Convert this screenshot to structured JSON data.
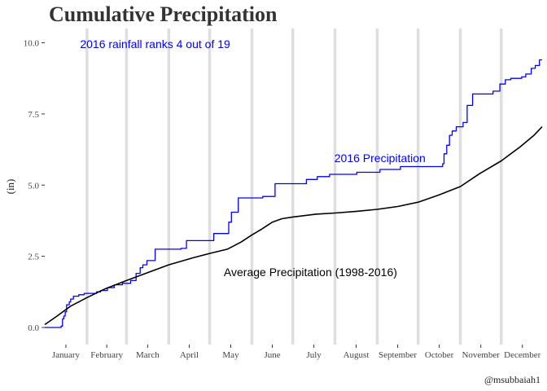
{
  "chart_data": {
    "type": "line",
    "title": "Cumulative Precipitation",
    "xlabel": "",
    "ylabel": "(in)",
    "caption": "@msubbaiah1",
    "ylim": [
      -0.6,
      10.5
    ],
    "y_ticks": [
      "0.0",
      "2.5",
      "5.0",
      "7.5",
      "10.0"
    ],
    "x_tick_labels": [
      "January",
      "February",
      "March",
      "April",
      "May",
      "June",
      "July",
      "August",
      "September",
      "October",
      "November",
      "December"
    ],
    "month_boundaries_day": [
      32,
      61,
      92,
      122,
      153,
      183,
      214,
      245,
      275,
      306,
      336
    ],
    "grid": false,
    "annotations": [
      {
        "text": "2016 rainfall ranks 4 out of 19",
        "color": "#0000ff",
        "x_day": 82,
        "y": 9.95
      },
      {
        "text": "2016 Precipitation",
        "color": "#0000ff",
        "x_day": 247,
        "y": 5.95
      },
      {
        "text": "Average Precipitation (1998-2016)",
        "color": "#000000",
        "x_day": 196,
        "y": 1.95
      }
    ],
    "series": [
      {
        "name": "2016 Precipitation",
        "color": "#0000ff",
        "style": "step",
        "points": [
          [
            1,
            0.0
          ],
          [
            13,
            0.05
          ],
          [
            14,
            0.3
          ],
          [
            15,
            0.4
          ],
          [
            16,
            0.55
          ],
          [
            17,
            0.8
          ],
          [
            19,
            0.9
          ],
          [
            20,
            1.0
          ],
          [
            22,
            1.1
          ],
          [
            26,
            1.15
          ],
          [
            30,
            1.2
          ],
          [
            39,
            1.25
          ],
          [
            42,
            1.3
          ],
          [
            47,
            1.4
          ],
          [
            52,
            1.5
          ],
          [
            58,
            1.55
          ],
          [
            64,
            1.65
          ],
          [
            68,
            1.9
          ],
          [
            71,
            2.1
          ],
          [
            73,
            2.2
          ],
          [
            76,
            2.35
          ],
          [
            82,
            2.75
          ],
          [
            101,
            2.78
          ],
          [
            105,
            3.05
          ],
          [
            125,
            3.3
          ],
          [
            136,
            3.7
          ],
          [
            138,
            4.05
          ],
          [
            143,
            4.55
          ],
          [
            161,
            4.6
          ],
          [
            170,
            5.05
          ],
          [
            193,
            5.2
          ],
          [
            201,
            5.3
          ],
          [
            210,
            5.38
          ],
          [
            230,
            5.45
          ],
          [
            247,
            5.55
          ],
          [
            262,
            5.65
          ],
          [
            293,
            5.75
          ],
          [
            294,
            6.1
          ],
          [
            296,
            6.4
          ],
          [
            298,
            6.75
          ],
          [
            300,
            6.9
          ],
          [
            303,
            7.05
          ],
          [
            308,
            7.2
          ],
          [
            311,
            7.8
          ],
          [
            315,
            8.2
          ],
          [
            330,
            8.3
          ],
          [
            335,
            8.55
          ],
          [
            339,
            8.7
          ],
          [
            343,
            8.75
          ],
          [
            351,
            8.8
          ],
          [
            354,
            8.9
          ],
          [
            358,
            9.1
          ],
          [
            361,
            9.2
          ],
          [
            364,
            9.4
          ],
          [
            366,
            9.4
          ]
        ]
      },
      {
        "name": "Average Precipitation (1998-2016)",
        "color": "#000000",
        "style": "line",
        "points": [
          [
            1,
            0.1
          ],
          [
            10,
            0.4
          ],
          [
            20,
            0.75
          ],
          [
            32,
            1.05
          ],
          [
            45,
            1.35
          ],
          [
            61,
            1.65
          ],
          [
            75,
            1.9
          ],
          [
            92,
            2.2
          ],
          [
            110,
            2.45
          ],
          [
            122,
            2.6
          ],
          [
            135,
            2.75
          ],
          [
            145,
            3.0
          ],
          [
            153,
            3.25
          ],
          [
            160,
            3.45
          ],
          [
            168,
            3.7
          ],
          [
            175,
            3.82
          ],
          [
            183,
            3.88
          ],
          [
            200,
            3.98
          ],
          [
            214,
            4.02
          ],
          [
            230,
            4.08
          ],
          [
            245,
            4.15
          ],
          [
            260,
            4.25
          ],
          [
            275,
            4.4
          ],
          [
            290,
            4.65
          ],
          [
            306,
            4.95
          ],
          [
            320,
            5.4
          ],
          [
            336,
            5.85
          ],
          [
            350,
            6.35
          ],
          [
            360,
            6.75
          ],
          [
            366,
            7.05
          ]
        ]
      }
    ]
  }
}
